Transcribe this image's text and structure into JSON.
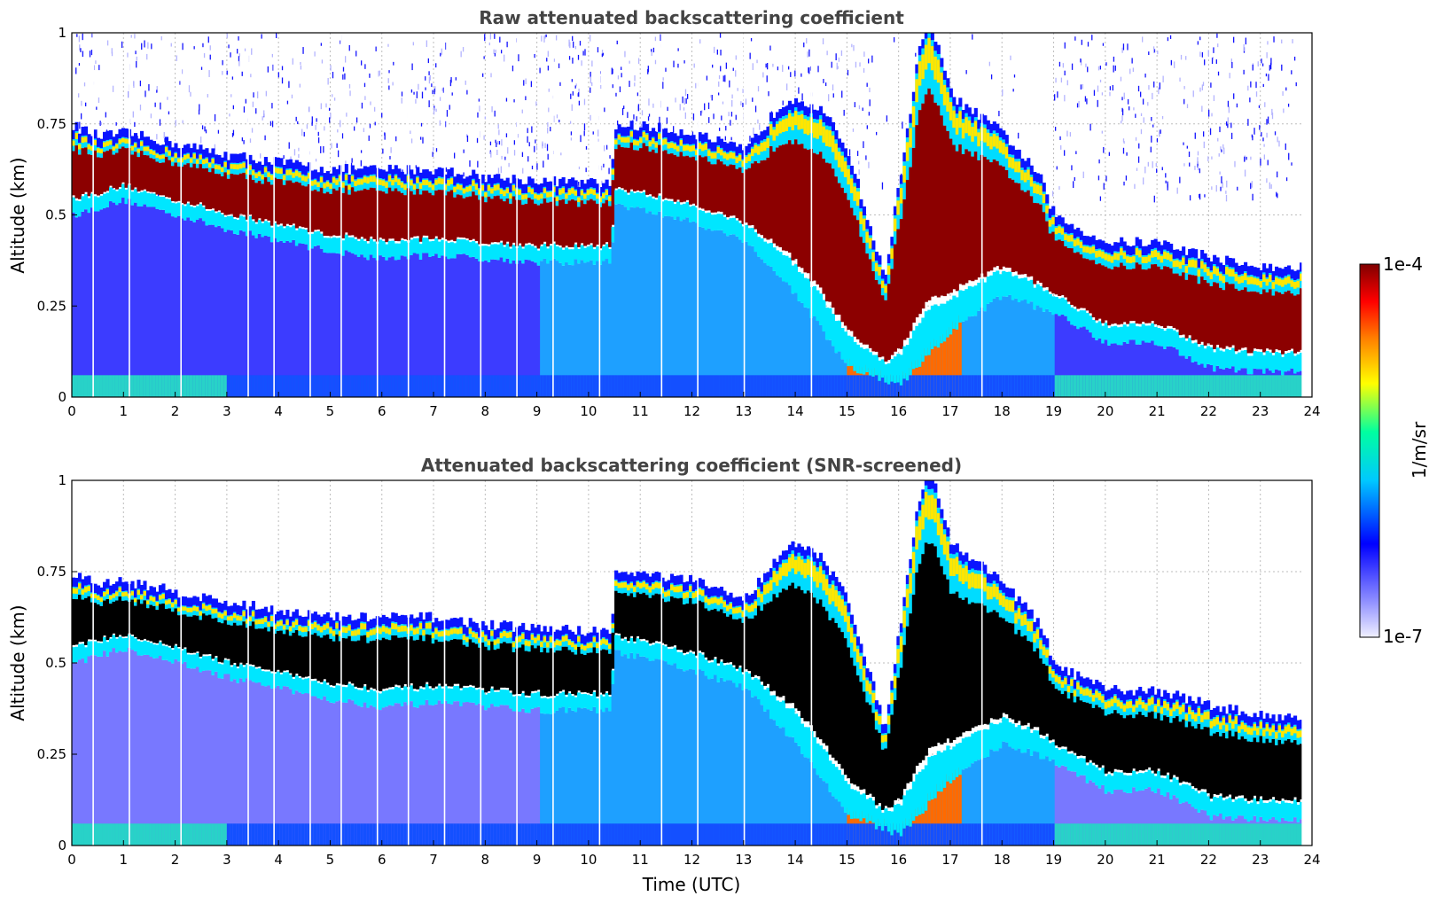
{
  "chart_data": [
    {
      "type": "heatmap",
      "title": "Raw attenuated backscattering coefficient",
      "xlabel": "",
      "ylabel": "Altitude (km)",
      "xlim": [
        0,
        24
      ],
      "ylim": [
        0,
        1
      ],
      "xticks": [
        "0",
        "1",
        "2",
        "3",
        "4",
        "5",
        "6",
        "7",
        "8",
        "9",
        "10",
        "11",
        "12",
        "13",
        "14",
        "15",
        "16",
        "17",
        "18",
        "19",
        "20",
        "21",
        "22",
        "23",
        "24"
      ],
      "yticks": [
        "0",
        "0.25",
        "0.5",
        "0.75",
        "1"
      ],
      "grid": true,
      "layer_top_km": [
        [
          0,
          0.72
        ],
        [
          0.5,
          0.69
        ],
        [
          1,
          0.7
        ],
        [
          2,
          0.67
        ],
        [
          3,
          0.64
        ],
        [
          4,
          0.62
        ],
        [
          5,
          0.6
        ],
        [
          6,
          0.6
        ],
        [
          7,
          0.6
        ],
        [
          8,
          0.58
        ],
        [
          9,
          0.57
        ],
        [
          10.4,
          0.56
        ],
        [
          10.5,
          0.72
        ],
        [
          11,
          0.72
        ],
        [
          12,
          0.7
        ],
        [
          13,
          0.65
        ],
        [
          13.7,
          0.78
        ],
        [
          14,
          0.8
        ],
        [
          14.5,
          0.76
        ],
        [
          15,
          0.65
        ],
        [
          15.7,
          0.3
        ],
        [
          16.4,
          0.95
        ],
        [
          16.6,
          1.0
        ],
        [
          17,
          0.8
        ],
        [
          18,
          0.7
        ],
        [
          18.7,
          0.58
        ],
        [
          19,
          0.47
        ],
        [
          20,
          0.4
        ],
        [
          21,
          0.4
        ],
        [
          22,
          0.36
        ],
        [
          23,
          0.33
        ],
        [
          23.8,
          0.33
        ]
      ],
      "layer_bottom_km": [
        [
          0,
          0.52
        ],
        [
          1,
          0.56
        ],
        [
          2,
          0.52
        ],
        [
          3,
          0.48
        ],
        [
          4,
          0.45
        ],
        [
          5,
          0.42
        ],
        [
          6,
          0.4
        ],
        [
          7,
          0.41
        ],
        [
          8,
          0.4
        ],
        [
          9,
          0.39
        ],
        [
          10.4,
          0.39
        ],
        [
          10.5,
          0.55
        ],
        [
          12,
          0.5
        ],
        [
          13,
          0.45
        ],
        [
          14,
          0.3
        ],
        [
          15,
          0.1
        ],
        [
          16,
          0.05
        ],
        [
          17,
          0.2
        ],
        [
          18,
          0.3
        ],
        [
          19,
          0.25
        ],
        [
          20,
          0.17
        ],
        [
          21,
          0.17
        ],
        [
          22,
          0.1
        ],
        [
          23,
          0.09
        ],
        [
          23.8,
          0.09
        ]
      ],
      "colorbar": {
        "min_label": "1e-7",
        "max_label": "1e-4",
        "label": "1/m/sr",
        "scale": "log",
        "colormap": [
          "#f0f0ff",
          "#0000ff",
          "#00c8ff",
          "#00ffa0",
          "#ffff00",
          "#ff8000",
          "#ff0000",
          "#800000"
        ]
      }
    },
    {
      "type": "heatmap",
      "title": "Attenuated backscattering coefficient (SNR-screened)",
      "xlabel": "Time (UTC)",
      "ylabel": "Altitude (km)",
      "xlim": [
        0,
        24
      ],
      "ylim": [
        0,
        1
      ],
      "xticks": [
        "0",
        "1",
        "2",
        "3",
        "4",
        "5",
        "6",
        "7",
        "8",
        "9",
        "10",
        "11",
        "12",
        "13",
        "14",
        "15",
        "16",
        "17",
        "18",
        "19",
        "20",
        "21",
        "22",
        "23",
        "24"
      ],
      "yticks": [
        "0",
        "0.25",
        "0.5",
        "0.75",
        "1"
      ],
      "grid": true,
      "saturated_color": "#000000"
    }
  ]
}
